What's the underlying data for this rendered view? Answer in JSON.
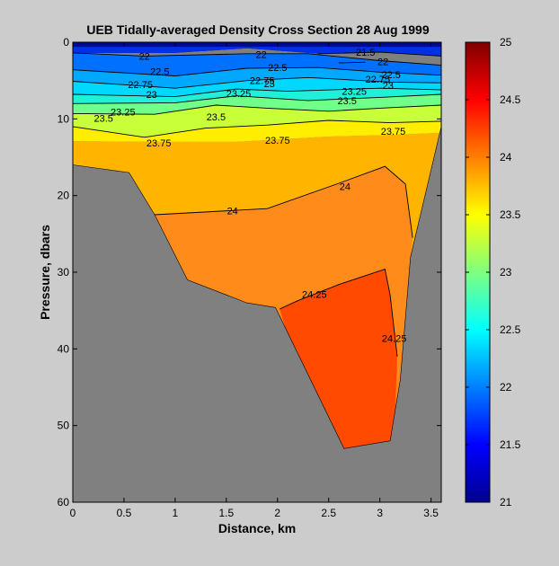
{
  "chart_data": {
    "type": "contour",
    "title": "UEB  Tidally-averaged Density Cross Section  28 Aug 1999",
    "xlabel": "Distance, km",
    "ylabel": "Pressure, dbars",
    "xlim": [
      0,
      3.6
    ],
    "ylim": [
      60,
      0
    ],
    "x_ticks": [
      "0",
      "0.5",
      "1",
      "1.5",
      "2",
      "2.5",
      "3",
      "3.5"
    ],
    "x_tick_values": [
      0,
      0.5,
      1,
      1.5,
      2,
      2.5,
      3,
      3.5
    ],
    "y_ticks": [
      "0",
      "10",
      "20",
      "30",
      "40",
      "50",
      "60"
    ],
    "y_tick_values": [
      0,
      10,
      20,
      30,
      40,
      50,
      60
    ],
    "colorbar": {
      "range": [
        21,
        25
      ],
      "ticks": [
        "21",
        "21.5",
        "22",
        "22.5",
        "23",
        "23.5",
        "24",
        "24.5",
        "25"
      ],
      "tick_values": [
        21,
        21.5,
        22,
        22.5,
        23,
        23.5,
        24,
        24.5,
        25
      ]
    },
    "bottom_profile": [
      [
        0,
        16
      ],
      [
        0.55,
        17
      ],
      [
        0.8,
        22.5
      ],
      [
        1.12,
        31
      ],
      [
        1.7,
        34
      ],
      [
        1.98,
        34.6
      ],
      [
        2.65,
        53
      ],
      [
        3.1,
        52
      ],
      [
        3.2,
        44
      ],
      [
        3.3,
        28
      ],
      [
        3.6,
        11
      ],
      [
        3.6,
        60
      ],
      [
        0,
        60
      ]
    ],
    "fill_bands": [
      {
        "level": 21.25,
        "color": "#000a8c",
        "boundary": [
          [
            0,
            0
          ],
          [
            3.6,
            0
          ],
          [
            3.6,
            1.8
          ],
          [
            3,
            1.3
          ],
          [
            2.4,
            1.5
          ],
          [
            1.7,
            0.8
          ],
          [
            1,
            1.4
          ],
          [
            0,
            1.4
          ]
        ]
      },
      {
        "level": 21.6,
        "color": "#0030e6",
        "boundary": [
          [
            0,
            0.6
          ],
          [
            3.6,
            0.6
          ],
          [
            3.6,
            1.8
          ],
          [
            3,
            1.3
          ],
          [
            2.4,
            1.5
          ],
          [
            1.7,
            0.8
          ],
          [
            1,
            1.4
          ],
          [
            0,
            1.4
          ]
        ]
      },
      {
        "level": 22.1,
        "color": "#0070ff",
        "boundary": [
          [
            0,
            1.4
          ],
          [
            0.7,
            1.8
          ],
          [
            1.7,
            1.5
          ],
          [
            2.3,
            1.5
          ],
          [
            3,
            2.4
          ],
          [
            3.6,
            3
          ],
          [
            3.6,
            4.3
          ],
          [
            3,
            3.9
          ],
          [
            2.4,
            3.3
          ],
          [
            1.7,
            3.4
          ],
          [
            1,
            4.4
          ],
          [
            0,
            3.6
          ]
        ]
      },
      {
        "level": 22.4,
        "color": "#00a8ff",
        "boundary": [
          [
            0,
            3.6
          ],
          [
            1,
            4.4
          ],
          [
            1.7,
            3.4
          ],
          [
            2.4,
            3.3
          ],
          [
            3,
            3.9
          ],
          [
            3.6,
            4.3
          ],
          [
            3.6,
            5.3
          ],
          [
            3.1,
            5.2
          ],
          [
            2.3,
            4.6
          ],
          [
            1.7,
            5
          ],
          [
            1,
            6
          ],
          [
            0,
            5.1
          ]
        ]
      },
      {
        "level": 22.6,
        "color": "#00d8ff",
        "boundary": [
          [
            0,
            5.1
          ],
          [
            1,
            6
          ],
          [
            1.7,
            5
          ],
          [
            2.3,
            4.6
          ],
          [
            3.1,
            5.2
          ],
          [
            3.6,
            5.3
          ],
          [
            3.6,
            6.2
          ],
          [
            3,
            6
          ],
          [
            2.1,
            6.4
          ],
          [
            1.6,
            6.1
          ],
          [
            1,
            7.1
          ],
          [
            0,
            6.8
          ]
        ]
      },
      {
        "level": 22.85,
        "color": "#20f0d8",
        "boundary": [
          [
            0,
            6.8
          ],
          [
            1,
            7.1
          ],
          [
            1.6,
            6.1
          ],
          [
            2.1,
            6.4
          ],
          [
            3,
            6
          ],
          [
            3.6,
            6.2
          ],
          [
            3.6,
            6.8
          ],
          [
            3,
            7.2
          ],
          [
            2.3,
            7.6
          ],
          [
            1.6,
            7
          ],
          [
            1,
            7.9
          ],
          [
            0,
            8
          ]
        ]
      },
      {
        "level": 23.1,
        "color": "#70ff88",
        "boundary": [
          [
            0,
            8
          ],
          [
            1,
            7.9
          ],
          [
            1.6,
            7
          ],
          [
            2.3,
            7.6
          ],
          [
            3,
            7.2
          ],
          [
            3.6,
            6.8
          ],
          [
            3.6,
            8.2
          ],
          [
            3,
            8.6
          ],
          [
            2.5,
            9
          ],
          [
            1.9,
            8.6
          ],
          [
            1.4,
            8.2
          ],
          [
            0.8,
            9.4
          ],
          [
            0,
            9.3
          ]
        ]
      },
      {
        "level": 23.4,
        "color": "#c8ff38",
        "boundary": [
          [
            0,
            9.3
          ],
          [
            0.8,
            9.4
          ],
          [
            1.4,
            8.2
          ],
          [
            1.9,
            8.6
          ],
          [
            2.5,
            9
          ],
          [
            3,
            8.6
          ],
          [
            3.6,
            8.2
          ],
          [
            3.6,
            10.3
          ],
          [
            3.1,
            10.5
          ],
          [
            2.5,
            10.2
          ],
          [
            1.9,
            10.8
          ],
          [
            1.3,
            11.2
          ],
          [
            0.7,
            12.4
          ],
          [
            0,
            11
          ]
        ]
      },
      {
        "level": 23.6,
        "color": "#ffee00",
        "boundary": [
          [
            0,
            11
          ],
          [
            0.7,
            12.4
          ],
          [
            1.3,
            11.2
          ],
          [
            1.9,
            10.8
          ],
          [
            2.5,
            10.2
          ],
          [
            3.1,
            10.5
          ],
          [
            3.6,
            10.3
          ],
          [
            3.6,
            11.8
          ],
          [
            3.1,
            12.1
          ],
          [
            2.5,
            12.3
          ],
          [
            1.6,
            13
          ],
          [
            0.8,
            13
          ],
          [
            0,
            12.9
          ]
        ]
      },
      {
        "level": 23.85,
        "color": "#ffb400",
        "boundary": [
          [
            0,
            12.9
          ],
          [
            0.8,
            13
          ],
          [
            1.6,
            13
          ],
          [
            2.5,
            12.3
          ],
          [
            3.1,
            12.1
          ],
          [
            3.6,
            11.8
          ],
          [
            3.6,
            60
          ],
          [
            0,
            60
          ]
        ]
      },
      {
        "level": 24.1,
        "color": "#ff8c1a",
        "boundary": [
          [
            0.8,
            22.5
          ],
          [
            1.9,
            21.7
          ],
          [
            2.6,
            18.4
          ],
          [
            3.05,
            16.2
          ],
          [
            3.25,
            18.5
          ],
          [
            3.32,
            25.5
          ],
          [
            3.3,
            28
          ],
          [
            3.28,
            60
          ],
          [
            1.12,
            60
          ]
        ]
      },
      {
        "level": 24.35,
        "color": "#ff4a00",
        "boundary": [
          [
            2.02,
            34.8
          ],
          [
            2.2,
            33.7
          ],
          [
            2.6,
            31.6
          ],
          [
            3.05,
            29.6
          ],
          [
            3.1,
            33
          ],
          [
            3.17,
            41
          ],
          [
            3.12,
            60
          ],
          [
            2.6,
            60
          ]
        ]
      }
    ],
    "contour_lines": [
      {
        "label": "22",
        "points": [
          [
            0,
            1.4
          ],
          [
            0.7,
            1.8
          ],
          [
            1.7,
            1.5
          ],
          [
            2.3,
            1.5
          ],
          [
            3,
            2.4
          ],
          [
            3.6,
            3
          ]
        ],
        "label_at": [
          [
            0.7,
            1.8
          ],
          [
            1.84,
            1.6
          ]
        ]
      },
      {
        "label": "21.5",
        "points": [
          [
            2.4,
            1.5
          ],
          [
            3,
            1.3
          ],
          [
            3.6,
            1.8
          ]
        ],
        "label_at": [
          [
            2.86,
            1.3
          ]
        ]
      },
      {
        "label": "22.5",
        "points": [
          [
            0,
            3.6
          ],
          [
            1,
            4.4
          ],
          [
            1.7,
            3.4
          ],
          [
            2.4,
            3.3
          ],
          [
            3,
            3.9
          ],
          [
            3.6,
            4.3
          ]
        ],
        "label_at": [
          [
            0.85,
            3.8
          ],
          [
            2.0,
            3.3
          ],
          [
            3.11,
            4.2
          ]
        ]
      },
      {
        "label": "22",
        "points": [
          [
            2.6,
            2.7
          ],
          [
            2.86,
            2.6
          ]
        ],
        "label_at": [
          [
            3.03,
            2.5
          ]
        ]
      },
      {
        "label": "22.75",
        "points": [
          [
            0,
            5.1
          ],
          [
            1,
            6
          ],
          [
            1.7,
            5
          ],
          [
            2.3,
            4.6
          ],
          [
            3.1,
            5.2
          ],
          [
            3.6,
            5.3
          ]
        ],
        "label_at": [
          [
            0.66,
            5.5
          ],
          [
            1.85,
            5
          ],
          [
            2.98,
            4.8
          ]
        ]
      },
      {
        "label": "23",
        "points": [
          [
            0,
            6.8
          ],
          [
            1,
            7.1
          ],
          [
            1.6,
            6.1
          ],
          [
            2.1,
            6.4
          ],
          [
            3,
            6
          ],
          [
            3.6,
            6.2
          ]
        ],
        "label_at": [
          [
            0.77,
            6.8
          ],
          [
            1.92,
            5.4
          ],
          [
            3.08,
            5.6
          ]
        ]
      },
      {
        "label": "23.25",
        "points": [
          [
            0,
            8
          ],
          [
            1,
            7.9
          ],
          [
            1.6,
            7
          ],
          [
            2.3,
            7.6
          ],
          [
            3,
            7.2
          ],
          [
            3.6,
            6.8
          ]
        ],
        "label_at": [
          [
            0.49,
            9.1
          ],
          [
            1.62,
            6.7
          ],
          [
            2.75,
            6.4
          ]
        ]
      },
      {
        "label": "23.5",
        "points": [
          [
            0,
            9.3
          ],
          [
            0.8,
            9.4
          ],
          [
            1.4,
            8.2
          ],
          [
            1.9,
            8.6
          ],
          [
            2.5,
            9
          ],
          [
            3,
            8.6
          ],
          [
            3.6,
            8.2
          ]
        ],
        "label_at": [
          [
            0.3,
            9.9
          ],
          [
            1.4,
            9.7
          ],
          [
            2.68,
            7.6
          ]
        ]
      },
      {
        "label": "23.75",
        "points": [
          [
            0,
            11
          ],
          [
            0.7,
            12.4
          ],
          [
            1.3,
            11.2
          ],
          [
            1.9,
            10.8
          ],
          [
            2.5,
            10.2
          ],
          [
            3.1,
            10.5
          ],
          [
            3.6,
            10.3
          ]
        ],
        "label_at": [
          [
            0.84,
            13.1
          ],
          [
            2.0,
            12.8
          ],
          [
            3.13,
            11.6
          ]
        ]
      },
      {
        "label": "24",
        "points": [
          [
            0.8,
            22.5
          ],
          [
            1.9,
            21.7
          ],
          [
            2.6,
            18.4
          ],
          [
            3.05,
            16.2
          ],
          [
            3.25,
            18.5
          ],
          [
            3.32,
            25.5
          ]
        ],
        "label_at": [
          [
            1.56,
            22
          ],
          [
            2.66,
            18.8
          ]
        ]
      },
      {
        "label": "24.25",
        "points": [
          [
            2.02,
            34.8
          ],
          [
            2.2,
            33.7
          ],
          [
            2.6,
            31.6
          ],
          [
            3.05,
            29.6
          ],
          [
            3.1,
            33
          ],
          [
            3.17,
            41
          ]
        ],
        "label_at": [
          [
            2.36,
            32.9
          ],
          [
            3.14,
            38.6
          ]
        ]
      }
    ]
  }
}
